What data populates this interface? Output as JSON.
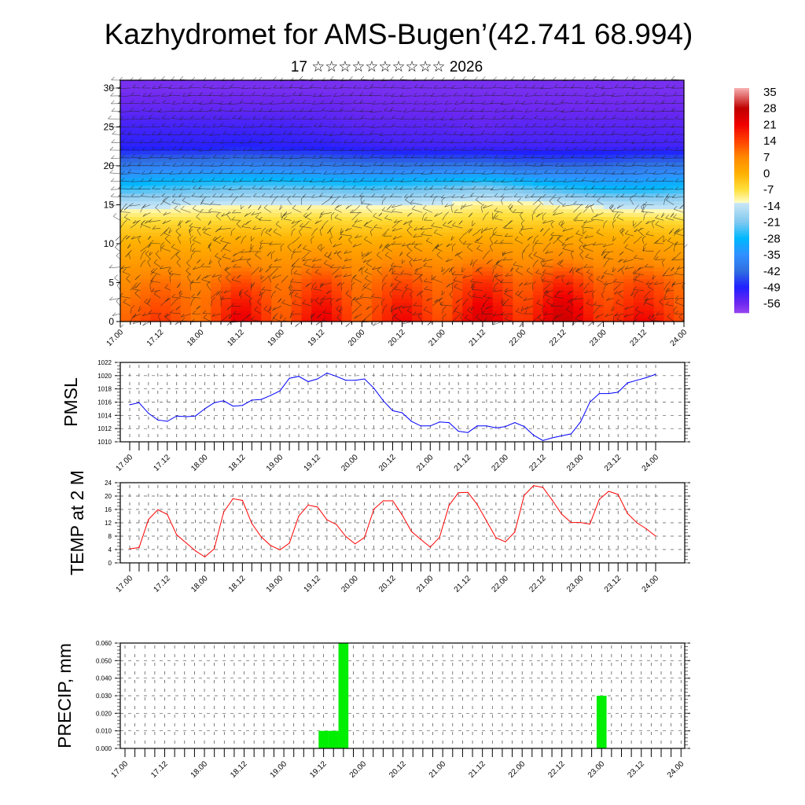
{
  "title": "Kazhydromet for AMS-Bugen’(42.741 68.994)",
  "subtitle": "17 ☆☆☆☆☆☆☆☆☆☆ 2026",
  "chart_data": [
    {
      "type": "heatmap",
      "name": "vertical-temperature-wind-section",
      "x_tick_labels": [
        "17.00",
        "17.12",
        "18.00",
        "18.12",
        "19.00",
        "19.12",
        "20.00",
        "20.12",
        "21.00",
        "21.12",
        "22.00",
        "22.12",
        "23.00",
        "23.12",
        "24.00"
      ],
      "y_tick_labels": [
        "0",
        "5",
        "10",
        "15",
        "20",
        "25",
        "30"
      ],
      "ylim": [
        0,
        31
      ],
      "grid_heights": [
        0,
        2.5,
        5,
        7.5,
        10,
        12.5,
        15,
        17.5,
        20,
        22.5,
        25,
        27.5,
        30
      ],
      "temperature_grid": [
        [
          10,
          16,
          8,
          24,
          10,
          24,
          10,
          22,
          12,
          26,
          14,
          28,
          14,
          22,
          12
        ],
        [
          8,
          13,
          8,
          20,
          9,
          20,
          9,
          19,
          10,
          22,
          12,
          24,
          12,
          18,
          10
        ],
        [
          6,
          10,
          7,
          14,
          8,
          15,
          8,
          14,
          9,
          17,
          10,
          18,
          10,
          14,
          9
        ],
        [
          3,
          5,
          4,
          7,
          5,
          8,
          5,
          8,
          6,
          9,
          6,
          9,
          6,
          7,
          5
        ],
        [
          0,
          1,
          0,
          2,
          1,
          2,
          1,
          2,
          1,
          3,
          2,
          3,
          2,
          2,
          1
        ],
        [
          -5,
          -5,
          -5,
          -4,
          -5,
          -4,
          -5,
          -4,
          -5,
          -4,
          -4,
          -3,
          -3,
          -4,
          -5
        ],
        [
          -14,
          -14,
          -13,
          -12,
          -12,
          -12,
          -13,
          -13,
          -12,
          -10,
          -10,
          -12,
          -14,
          -15,
          -15
        ],
        [
          -28,
          -26,
          -25,
          -24,
          -24,
          -25,
          -26,
          -25,
          -24,
          -22,
          -25,
          -28,
          -30,
          -30,
          -28
        ],
        [
          -40,
          -38,
          -38,
          -37,
          -38,
          -39,
          -40,
          -40,
          -40,
          -40,
          -42,
          -42,
          -42,
          -40,
          -40
        ],
        [
          -50,
          -50,
          -50,
          -49,
          -50,
          -50,
          -51,
          -52,
          -52,
          -52,
          -52,
          -52,
          -52,
          -52,
          -52
        ],
        [
          -52,
          -52,
          -52,
          -52,
          -52,
          -53,
          -54,
          -54,
          -54,
          -55,
          -54,
          -54,
          -54,
          -54,
          -54
        ],
        [
          -55,
          -55,
          -55,
          -55,
          -55,
          -55,
          -56,
          -56,
          -56,
          -56,
          -56,
          -56,
          -56,
          -56,
          -56
        ],
        [
          -57,
          -57,
          -57,
          -57,
          -57,
          -57,
          -57,
          -57,
          -57,
          -57,
          -57,
          -57,
          -57,
          -57,
          -57
        ]
      ],
      "colorbar_labels": [
        "35",
        "28",
        "21",
        "14",
        "7",
        "0",
        "-7",
        "-14",
        "-21",
        "-28",
        "-35",
        "-42",
        "-49",
        "-56"
      ],
      "colorbar_range": [
        -60,
        36.7
      ],
      "overlay": "wind barbs"
    },
    {
      "type": "line",
      "name": "pmsl",
      "ylabel": "PMSL",
      "color": "#0000ff",
      "ylim": [
        1010,
        1022
      ],
      "y_tick_labels": [
        "1010",
        "1012",
        "1014",
        "1016",
        "1018",
        "1020",
        "1022"
      ],
      "x_tick_labels": [
        "17.00",
        "17.12",
        "18.00",
        "18.12",
        "19.00",
        "19.12",
        "20.00",
        "20.12",
        "21.00",
        "21.12",
        "22.00",
        "22.12",
        "23.00",
        "23.12",
        "24.00"
      ],
      "x_step_hours": 3,
      "values": [
        1015.6,
        1015.9,
        1014.3,
        1013.3,
        1013.1,
        1013.9,
        1013.8,
        1013.9,
        1015.0,
        1015.9,
        1016.2,
        1015.4,
        1015.5,
        1016.3,
        1016.4,
        1017.0,
        1017.7,
        1019.6,
        1019.9,
        1019.1,
        1019.5,
        1020.4,
        1019.9,
        1019.3,
        1019.3,
        1019.5,
        1018.1,
        1016.2,
        1014.7,
        1014.4,
        1013.1,
        1012.4,
        1012.4,
        1013.0,
        1012.9,
        1011.6,
        1011.4,
        1012.4,
        1012.4,
        1012.1,
        1012.3,
        1012.9,
        1012.3,
        1011.0,
        1010.2,
        1010.6,
        1010.9,
        1011.2,
        1013.0,
        1016.0,
        1017.3,
        1017.3,
        1017.5,
        1018.9,
        1019.3,
        1019.7,
        1020.2
      ]
    },
    {
      "type": "line",
      "name": "temp-2m",
      "ylabel": "TEMP at 2 M",
      "color": "#ff0000",
      "ylim": [
        0,
        24
      ],
      "y_tick_labels": [
        "0",
        "4",
        "8",
        "12",
        "16",
        "20",
        "24"
      ],
      "x_tick_labels": [
        "17.00",
        "17.12",
        "18.00",
        "18.12",
        "19.00",
        "19.12",
        "20.00",
        "20.12",
        "21.00",
        "21.12",
        "22.00",
        "22.12",
        "23.00",
        "23.12",
        "24.00"
      ],
      "x_step_hours": 3,
      "values": [
        4.2,
        4.6,
        13.0,
        15.9,
        14.5,
        8.4,
        6.0,
        3.6,
        1.8,
        4.2,
        15.2,
        19.2,
        18.7,
        11.8,
        7.8,
        5.2,
        3.9,
        5.9,
        14.0,
        17.3,
        16.7,
        12.9,
        11.5,
        7.9,
        5.7,
        7.6,
        16.1,
        18.6,
        18.6,
        14.4,
        9.4,
        7.0,
        4.7,
        7.7,
        17.2,
        21.0,
        21.1,
        17.5,
        12.5,
        7.5,
        6.3,
        9.2,
        20.2,
        23.1,
        22.6,
        18.7,
        14.6,
        12.1,
        12.1,
        11.6,
        19.0,
        21.4,
        20.5,
        14.8,
        12.0,
        10.2,
        8.0
      ]
    },
    {
      "type": "bar",
      "name": "precip",
      "ylabel": "PRECIP, mm",
      "color": "#00ee00",
      "ylim": [
        0,
        0.06
      ],
      "y_tick_labels": [
        "0.000",
        "0.010",
        "0.020",
        "0.030",
        "0.040",
        "0.050",
        "0.060"
      ],
      "x_tick_labels": [
        "17.00",
        "17.12",
        "18.00",
        "18.12",
        "19.00",
        "19.12",
        "20.00",
        "20.12",
        "21.00",
        "21.12",
        "22.00",
        "22.12",
        "23.00",
        "23.12",
        "24.00"
      ],
      "x_step_hours": 3,
      "bars": [
        {
          "index": 20,
          "value": 0.01
        },
        {
          "index": 21,
          "value": 0.01
        },
        {
          "index": 22,
          "value": 0.06
        },
        {
          "index": 48,
          "value": 0.03
        }
      ]
    }
  ]
}
